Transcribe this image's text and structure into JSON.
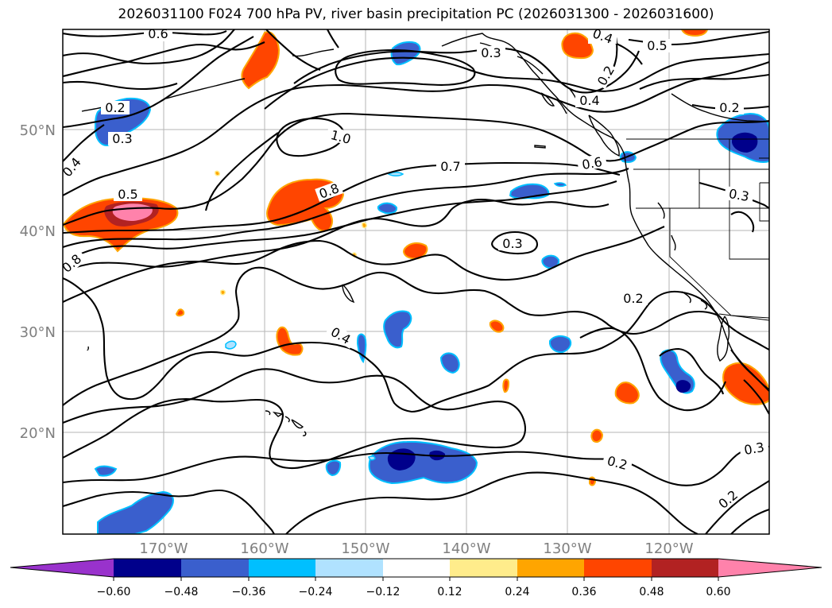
{
  "title": "2026031100 F024 700 hPa PV, river basin precipitation PC (2026031300 - 2026031600)",
  "map": {
    "lon_labels": [
      "170°W",
      "160°W",
      "150°W",
      "140°W",
      "130°W",
      "120°W"
    ],
    "lat_labels": [
      "50°N",
      "40°N",
      "30°N",
      "20°N"
    ],
    "contour_labels": [
      "0.6",
      "0.4",
      "0.5",
      "0.3",
      "0.2",
      "0.7",
      "1.0",
      "0.8",
      "0.6",
      "0.3",
      "0.2",
      "0.4",
      "0.5",
      "0.8",
      "0.3",
      "0.2",
      "0.4",
      "0.2",
      "0.3",
      "0.2",
      "0.2",
      "0.4",
      "0.3"
    ]
  },
  "colorbar": {
    "ticks": [
      "−0.60",
      "−0.48",
      "−0.36",
      "−0.24",
      "−0.12",
      "0.12",
      "0.24",
      "0.36",
      "0.48",
      "0.60"
    ],
    "colors": [
      "#9932CC",
      "#00008B",
      "#3A5FCD",
      "#00BFFF",
      "#B0E2FF",
      "#FFFFFF",
      "#FFEC8B",
      "#FFA500",
      "#FF4500",
      "#B22222",
      "#FF82AB"
    ]
  }
}
